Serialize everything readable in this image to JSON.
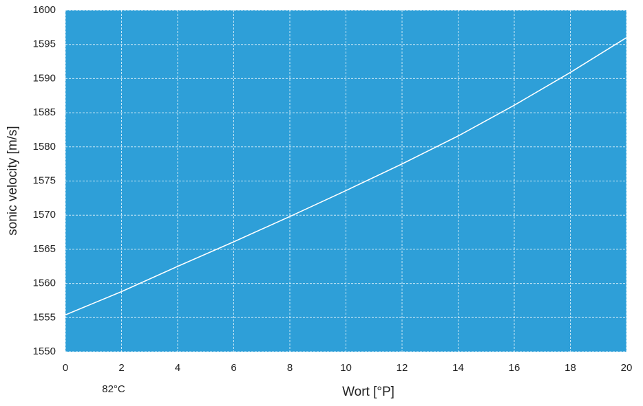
{
  "chart_data": {
    "type": "line",
    "x_label": "Wort [°P]",
    "y_label": "sonic velocity [m/s]",
    "annotation": "82°C",
    "x": [
      0,
      2,
      4,
      6,
      8,
      10,
      12,
      14,
      16,
      18,
      20
    ],
    "series": [
      {
        "color": "#ffffff",
        "values": [
          1555.4,
          1558.8,
          1562.5,
          1566.1,
          1569.8,
          1573.6,
          1577.5,
          1581.6,
          1586.1,
          1590.9,
          1596.0
        ]
      }
    ],
    "xlim": [
      0,
      20
    ],
    "xticks": [
      0,
      2,
      4,
      6,
      8,
      10,
      12,
      14,
      16,
      18,
      20
    ],
    "ylim": [
      1550,
      1600
    ],
    "yticks": [
      1550,
      1555,
      1560,
      1565,
      1570,
      1575,
      1580,
      1585,
      1590,
      1595,
      1600
    ],
    "grid": true,
    "plot_background": "#2e9fd8"
  }
}
